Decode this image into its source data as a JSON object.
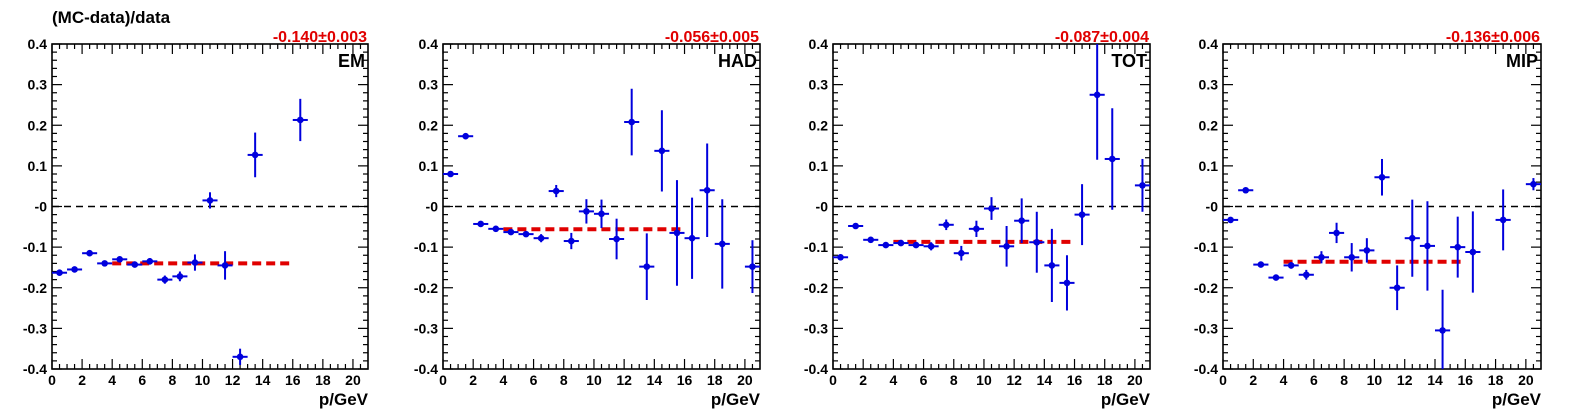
{
  "chart_data": {
    "type": "scatter",
    "ylabel": "(MC-data)/data",
    "xlabel": "p/GeV",
    "xlim": [
      0,
      21
    ],
    "ylim": [
      -0.4,
      0.4
    ],
    "xticks": [
      0,
      2,
      4,
      6,
      8,
      10,
      12,
      14,
      16,
      18,
      20
    ],
    "yticks": [
      {
        "v": 0.4,
        "label": "0.4"
      },
      {
        "v": 0.3,
        "label": "0.3"
      },
      {
        "v": 0.2,
        "label": "0.2"
      },
      {
        "v": 0.1,
        "label": "0.1"
      },
      {
        "v": 0.0,
        "label": "-0"
      },
      {
        "v": -0.1,
        "label": "-0.1"
      },
      {
        "v": -0.2,
        "label": "-0.2"
      },
      {
        "v": -0.3,
        "label": "-0.3"
      },
      {
        "v": -0.4,
        "label": "-0.4"
      }
    ],
    "colors": {
      "points": "#0000dd",
      "fit": "#e00000",
      "zero_line": "#000000"
    },
    "panels": [
      {
        "label": "EM",
        "fit_text": "-0.140±0.003",
        "fit": {
          "value": -0.14,
          "x_range": [
            4,
            16
          ]
        },
        "points": [
          {
            "x": 0.5,
            "y": -0.163,
            "err": 0.006
          },
          {
            "x": 1.5,
            "y": -0.155,
            "err": 0.006
          },
          {
            "x": 2.5,
            "y": -0.115,
            "err": 0.006
          },
          {
            "x": 3.5,
            "y": -0.14,
            "err": 0.006
          },
          {
            "x": 4.5,
            "y": -0.13,
            "err": 0.007
          },
          {
            "x": 5.5,
            "y": -0.143,
            "err": 0.007
          },
          {
            "x": 6.5,
            "y": -0.135,
            "err": 0.008
          },
          {
            "x": 7.5,
            "y": -0.18,
            "err": 0.01
          },
          {
            "x": 8.5,
            "y": -0.172,
            "err": 0.012
          },
          {
            "x": 9.5,
            "y": -0.138,
            "err": 0.02
          },
          {
            "x": 10.5,
            "y": 0.015,
            "err": 0.02
          },
          {
            "x": 11.5,
            "y": -0.145,
            "err": 0.035
          },
          {
            "x": 12.5,
            "y": -0.37,
            "err": 0.02
          },
          {
            "x": 13.5,
            "y": 0.127,
            "err": 0.055
          },
          {
            "x": 16.5,
            "y": 0.213,
            "err": 0.052
          }
        ]
      },
      {
        "label": "HAD",
        "fit_text": "-0.056±0.005",
        "fit": {
          "value": -0.056,
          "x_range": [
            4,
            16
          ]
        },
        "points": [
          {
            "x": 0.5,
            "y": 0.08,
            "err": 0.005
          },
          {
            "x": 1.5,
            "y": 0.173,
            "err": 0.005
          },
          {
            "x": 2.5,
            "y": -0.043,
            "err": 0.005
          },
          {
            "x": 3.5,
            "y": -0.055,
            "err": 0.005
          },
          {
            "x": 4.5,
            "y": -0.063,
            "err": 0.006
          },
          {
            "x": 5.5,
            "y": -0.068,
            "err": 0.007
          },
          {
            "x": 6.5,
            "y": -0.078,
            "err": 0.01
          },
          {
            "x": 7.5,
            "y": 0.038,
            "err": 0.015
          },
          {
            "x": 8.5,
            "y": -0.085,
            "err": 0.02
          },
          {
            "x": 9.5,
            "y": -0.012,
            "err": 0.03
          },
          {
            "x": 10.5,
            "y": -0.018,
            "err": 0.035
          },
          {
            "x": 11.5,
            "y": -0.08,
            "err": 0.05
          },
          {
            "x": 12.5,
            "y": 0.208,
            "err": 0.082
          },
          {
            "x": 13.5,
            "y": -0.148,
            "err": 0.082
          },
          {
            "x": 14.5,
            "y": 0.137,
            "err": 0.1
          },
          {
            "x": 15.5,
            "y": -0.065,
            "err": 0.13
          },
          {
            "x": 16.5,
            "y": -0.078,
            "err": 0.1
          },
          {
            "x": 17.5,
            "y": 0.04,
            "err": 0.115
          },
          {
            "x": 18.5,
            "y": -0.092,
            "err": 0.11
          },
          {
            "x": 20.5,
            "y": -0.148,
            "err": 0.065
          }
        ]
      },
      {
        "label": "TOT",
        "fit_text": "-0.087±0.004",
        "fit": {
          "value": -0.087,
          "x_range": [
            4,
            16
          ]
        },
        "points": [
          {
            "x": 0.5,
            "y": -0.125,
            "err": 0.005
          },
          {
            "x": 1.5,
            "y": -0.048,
            "err": 0.005
          },
          {
            "x": 2.5,
            "y": -0.082,
            "err": 0.005
          },
          {
            "x": 3.5,
            "y": -0.095,
            "err": 0.005
          },
          {
            "x": 4.5,
            "y": -0.09,
            "err": 0.006
          },
          {
            "x": 5.5,
            "y": -0.095,
            "err": 0.007
          },
          {
            "x": 6.5,
            "y": -0.098,
            "err": 0.01
          },
          {
            "x": 7.5,
            "y": -0.045,
            "err": 0.013
          },
          {
            "x": 8.5,
            "y": -0.115,
            "err": 0.018
          },
          {
            "x": 9.5,
            "y": -0.055,
            "err": 0.02
          },
          {
            "x": 10.5,
            "y": -0.005,
            "err": 0.028
          },
          {
            "x": 11.5,
            "y": -0.098,
            "err": 0.05
          },
          {
            "x": 12.5,
            "y": -0.035,
            "err": 0.055
          },
          {
            "x": 13.5,
            "y": -0.088,
            "err": 0.075
          },
          {
            "x": 14.5,
            "y": -0.145,
            "err": 0.09
          },
          {
            "x": 15.5,
            "y": -0.188,
            "err": 0.068
          },
          {
            "x": 16.5,
            "y": -0.02,
            "err": 0.075
          },
          {
            "x": 17.5,
            "y": 0.275,
            "err": 0.16
          },
          {
            "x": 18.5,
            "y": 0.117,
            "err": 0.125
          },
          {
            "x": 20.5,
            "y": 0.052,
            "err": 0.065
          }
        ]
      },
      {
        "label": "MIP",
        "fit_text": "-0.136±0.006",
        "fit": {
          "value": -0.136,
          "x_range": [
            4,
            16
          ]
        },
        "points": [
          {
            "x": 0.5,
            "y": -0.033,
            "err": 0.005
          },
          {
            "x": 1.5,
            "y": 0.04,
            "err": 0.005
          },
          {
            "x": 2.5,
            "y": -0.143,
            "err": 0.006
          },
          {
            "x": 3.5,
            "y": -0.175,
            "err": 0.006
          },
          {
            "x": 4.5,
            "y": -0.145,
            "err": 0.008
          },
          {
            "x": 5.5,
            "y": -0.168,
            "err": 0.012
          },
          {
            "x": 6.5,
            "y": -0.125,
            "err": 0.015
          },
          {
            "x": 7.5,
            "y": -0.065,
            "err": 0.025
          },
          {
            "x": 8.5,
            "y": -0.125,
            "err": 0.035
          },
          {
            "x": 9.5,
            "y": -0.108,
            "err": 0.03
          },
          {
            "x": 10.5,
            "y": 0.072,
            "err": 0.045
          },
          {
            "x": 11.5,
            "y": -0.2,
            "err": 0.055
          },
          {
            "x": 12.5,
            "y": -0.078,
            "err": 0.095
          },
          {
            "x": 13.5,
            "y": -0.097,
            "err": 0.11
          },
          {
            "x": 14.5,
            "y": -0.305,
            "err": 0.1
          },
          {
            "x": 15.5,
            "y": -0.1,
            "err": 0.075
          },
          {
            "x": 16.5,
            "y": -0.112,
            "err": 0.1
          },
          {
            "x": 18.5,
            "y": -0.033,
            "err": 0.075
          },
          {
            "x": 20.5,
            "y": 0.055,
            "err": 0.015
          }
        ]
      }
    ]
  }
}
